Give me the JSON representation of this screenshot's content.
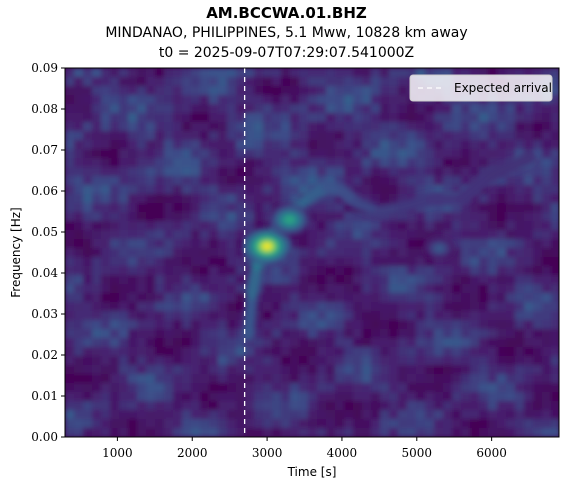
{
  "chart_data": {
    "type": "heatmap",
    "title": "AM.BCCWA.01.BHZ",
    "subtitle": "MINDANAO, PHILIPPINES, 5.1 Mww, 10828 km away",
    "subtitle2": "t0 = 2025-09-07T07:29:07.541000Z",
    "xlabel": "Time [s]",
    "ylabel": "Frequency [Hz]",
    "xlim": [
      300,
      6900
    ],
    "ylim": [
      0.0,
      0.09
    ],
    "xticks": [
      1000,
      2000,
      3000,
      4000,
      5000,
      6000
    ],
    "xtick_labels": [
      "1000",
      "2000",
      "3000",
      "4000",
      "5000",
      "6000"
    ],
    "yticks": [
      0.0,
      0.01,
      0.02,
      0.03,
      0.04,
      0.05,
      0.06,
      0.07,
      0.08,
      0.09
    ],
    "ytick_labels": [
      "0.00",
      "0.01",
      "0.02",
      "0.03",
      "0.04",
      "0.05",
      "0.06",
      "0.07",
      "0.08",
      "0.09"
    ],
    "colormap": "viridis",
    "expected_arrival_s": 2700,
    "legend": {
      "position": "top-right",
      "label": "Expected arrival"
    },
    "hotspots": [
      {
        "x": 3000,
        "y": 0.0465,
        "intensity": 1.0
      },
      {
        "x": 3300,
        "y": 0.053,
        "intensity": 0.7
      },
      {
        "x": 5300,
        "y": 0.046,
        "intensity": 0.35
      }
    ]
  },
  "colors": {
    "background_field": "#440154",
    "arrival_line": "#ffffff"
  }
}
